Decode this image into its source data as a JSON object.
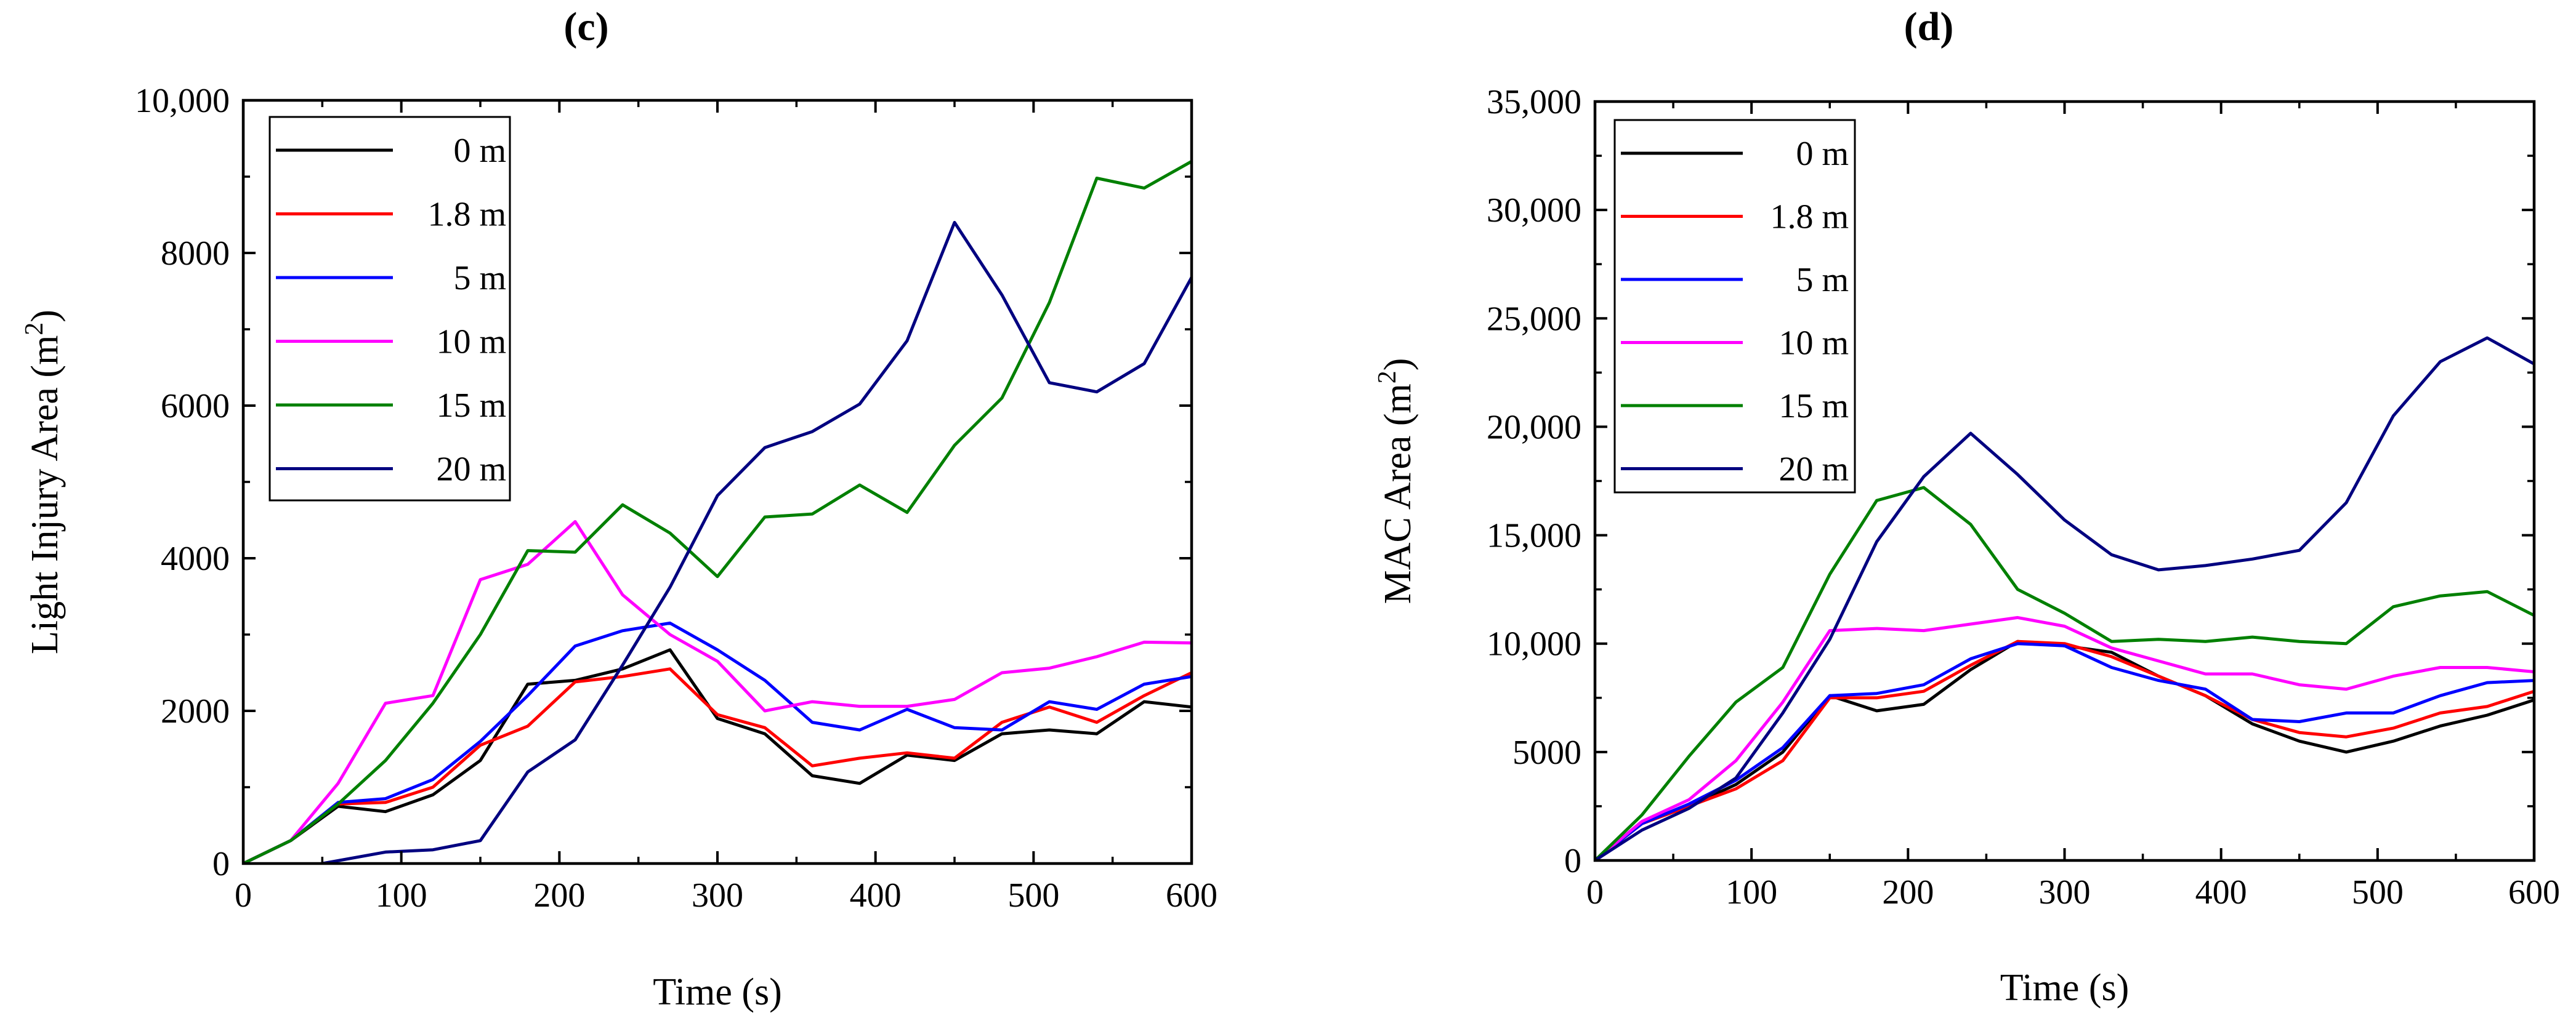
{
  "chart_data": [
    {
      "type": "line",
      "panel_label": "(c)",
      "xlabel": "Time (s)",
      "ylabel": "Light Injury Area (m",
      "ylabel_sup": "2",
      "ylabel_close": ")",
      "xlim": [
        0,
        600
      ],
      "ylim": [
        0,
        10000
      ],
      "xticks": [
        0,
        100,
        200,
        300,
        400,
        500,
        600
      ],
      "xtick_labels": [
        "0",
        "100",
        "200",
        "300",
        "400",
        "500",
        "600"
      ],
      "yticks": [
        0,
        2000,
        4000,
        6000,
        8000,
        10000
      ],
      "ytick_labels": [
        "0",
        "2000",
        "4000",
        "6000",
        "8000",
        "10,000"
      ],
      "legend_position": "top-left",
      "series": [
        {
          "name": "0 m",
          "color": "#000000",
          "x": [
            0,
            30,
            60,
            90,
            120,
            150,
            180,
            210,
            240,
            270,
            300,
            330,
            360,
            390,
            420,
            450,
            480,
            510,
            540,
            570,
            600
          ],
          "y": [
            0,
            300,
            750,
            680,
            900,
            1350,
            2350,
            2400,
            2550,
            2800,
            1900,
            1700,
            1150,
            1050,
            1420,
            1350,
            1700,
            1750,
            1700,
            2120,
            2050
          ]
        },
        {
          "name": "1.8 m",
          "color": "#ff0000",
          "x": [
            0,
            30,
            60,
            90,
            120,
            150,
            180,
            210,
            240,
            270,
            300,
            330,
            360,
            390,
            420,
            450,
            480,
            510,
            540,
            570,
            600
          ],
          "y": [
            0,
            300,
            780,
            800,
            1000,
            1550,
            1800,
            2380,
            2450,
            2550,
            1950,
            1780,
            1280,
            1380,
            1450,
            1380,
            1850,
            2050,
            1850,
            2200,
            2500
          ]
        },
        {
          "name": "5 m",
          "color": "#0000ff",
          "x": [
            0,
            30,
            60,
            90,
            120,
            150,
            180,
            210,
            240,
            270,
            300,
            330,
            360,
            390,
            420,
            450,
            480,
            510,
            540,
            570,
            600
          ],
          "y": [
            0,
            300,
            800,
            850,
            1100,
            1600,
            2200,
            2850,
            3050,
            3150,
            2800,
            2400,
            1850,
            1750,
            2020,
            1780,
            1750,
            2120,
            2020,
            2350,
            2450
          ]
        },
        {
          "name": "10 m",
          "color": "#ff00ff",
          "x": [
            0,
            30,
            60,
            90,
            120,
            150,
            180,
            210,
            240,
            270,
            300,
            330,
            360,
            390,
            420,
            450,
            480,
            510,
            540,
            570,
            600
          ],
          "y": [
            0,
            300,
            1050,
            2100,
            2200,
            3720,
            3920,
            4480,
            3520,
            3000,
            2650,
            2000,
            2120,
            2060,
            2060,
            2150,
            2500,
            2560,
            2710,
            2900,
            2890
          ]
        },
        {
          "name": "15 m",
          "color": "#008000",
          "x": [
            0,
            30,
            60,
            90,
            120,
            150,
            180,
            210,
            240,
            270,
            300,
            330,
            360,
            390,
            420,
            450,
            480,
            510,
            540,
            570,
            600
          ],
          "y": [
            0,
            300,
            780,
            1350,
            2100,
            3000,
            4100,
            4080,
            4700,
            4330,
            3760,
            4540,
            4580,
            4960,
            4600,
            5480,
            6100,
            7350,
            8980,
            8850,
            9200
          ]
        },
        {
          "name": "20 m",
          "color": "#000080",
          "x": [
            50,
            90,
            120,
            150,
            180,
            210,
            240,
            270,
            300,
            330,
            360,
            390,
            420,
            450,
            480,
            510,
            540,
            570,
            600
          ],
          "y": [
            0,
            150,
            180,
            300,
            1200,
            1620,
            2600,
            3620,
            4820,
            5450,
            5660,
            6020,
            6850,
            8400,
            7450,
            6300,
            6180,
            6550,
            7680
          ]
        }
      ]
    },
    {
      "type": "line",
      "panel_label": "(d)",
      "xlabel": "Time (s)",
      "ylabel": "MAC Area (m",
      "ylabel_sup": "2",
      "ylabel_close": ")",
      "xlim": [
        0,
        600
      ],
      "ylim": [
        0,
        35000
      ],
      "xticks": [
        0,
        100,
        200,
        300,
        400,
        500,
        600
      ],
      "xtick_labels": [
        "0",
        "100",
        "200",
        "300",
        "400",
        "500",
        "600"
      ],
      "yticks": [
        0,
        5000,
        10000,
        15000,
        20000,
        25000,
        30000,
        35000
      ],
      "ytick_labels": [
        "0",
        "5000",
        "10,000",
        "15,000",
        "20,000",
        "25,000",
        "30,000",
        "35,000"
      ],
      "legend_position": "top-left",
      "series": [
        {
          "name": "0 m",
          "color": "#000000",
          "x": [
            0,
            30,
            60,
            90,
            120,
            150,
            180,
            210,
            240,
            270,
            300,
            330,
            360,
            390,
            420,
            450,
            480,
            510,
            540,
            570,
            600
          ],
          "y": [
            0,
            1700,
            2500,
            3500,
            5000,
            7600,
            6900,
            7200,
            8800,
            10100,
            9900,
            9600,
            8500,
            7600,
            6300,
            5500,
            5000,
            5500,
            6200,
            6700,
            7400
          ]
        },
        {
          "name": "1.8 m",
          "color": "#ff0000",
          "x": [
            0,
            30,
            60,
            90,
            120,
            150,
            180,
            210,
            240,
            270,
            300,
            330,
            360,
            390,
            420,
            450,
            480,
            510,
            540,
            570,
            600
          ],
          "y": [
            0,
            1700,
            2500,
            3300,
            4600,
            7500,
            7500,
            7800,
            9000,
            10100,
            10000,
            9400,
            8500,
            7600,
            6500,
            5900,
            5700,
            6100,
            6800,
            7100,
            7800
          ]
        },
        {
          "name": "5 m",
          "color": "#0000ff",
          "x": [
            0,
            30,
            60,
            90,
            120,
            150,
            180,
            210,
            240,
            270,
            300,
            330,
            360,
            390,
            420,
            450,
            480,
            510,
            540,
            570,
            600
          ],
          "y": [
            0,
            1700,
            2600,
            3700,
            5200,
            7600,
            7700,
            8100,
            9300,
            10000,
            9900,
            8900,
            8300,
            7900,
            6500,
            6400,
            6800,
            6800,
            7600,
            8200,
            8300
          ]
        },
        {
          "name": "10 m",
          "color": "#ff00ff",
          "x": [
            0,
            30,
            60,
            90,
            120,
            150,
            180,
            210,
            240,
            270,
            300,
            330,
            360,
            390,
            420,
            450,
            480,
            510,
            540,
            570,
            600
          ],
          "y": [
            0,
            1800,
            2800,
            4600,
            7300,
            10600,
            10700,
            10600,
            10900,
            11200,
            10800,
            9800,
            9200,
            8600,
            8600,
            8100,
            7900,
            8500,
            8900,
            8900,
            8700
          ]
        },
        {
          "name": "15 m",
          "color": "#008000",
          "x": [
            0,
            30,
            60,
            90,
            120,
            150,
            180,
            210,
            240,
            270,
            300,
            330,
            360,
            390,
            420,
            450,
            480,
            510,
            540,
            570,
            600
          ],
          "y": [
            0,
            2100,
            4800,
            7300,
            8900,
            13200,
            16600,
            17200,
            15500,
            12500,
            11400,
            10100,
            10200,
            10100,
            10300,
            10100,
            10000,
            11700,
            12200,
            12400,
            11300
          ]
        },
        {
          "name": "20 m",
          "color": "#000080",
          "x": [
            0,
            30,
            60,
            90,
            120,
            150,
            180,
            210,
            240,
            270,
            300,
            330,
            360,
            390,
            420,
            450,
            480,
            510,
            540,
            570,
            600
          ],
          "y": [
            0,
            1400,
            2400,
            3800,
            6800,
            10200,
            14700,
            17700,
            19700,
            17800,
            15700,
            14100,
            13400,
            13600,
            13900,
            14300,
            16500,
            20500,
            23000,
            24100,
            22900
          ]
        }
      ]
    }
  ]
}
